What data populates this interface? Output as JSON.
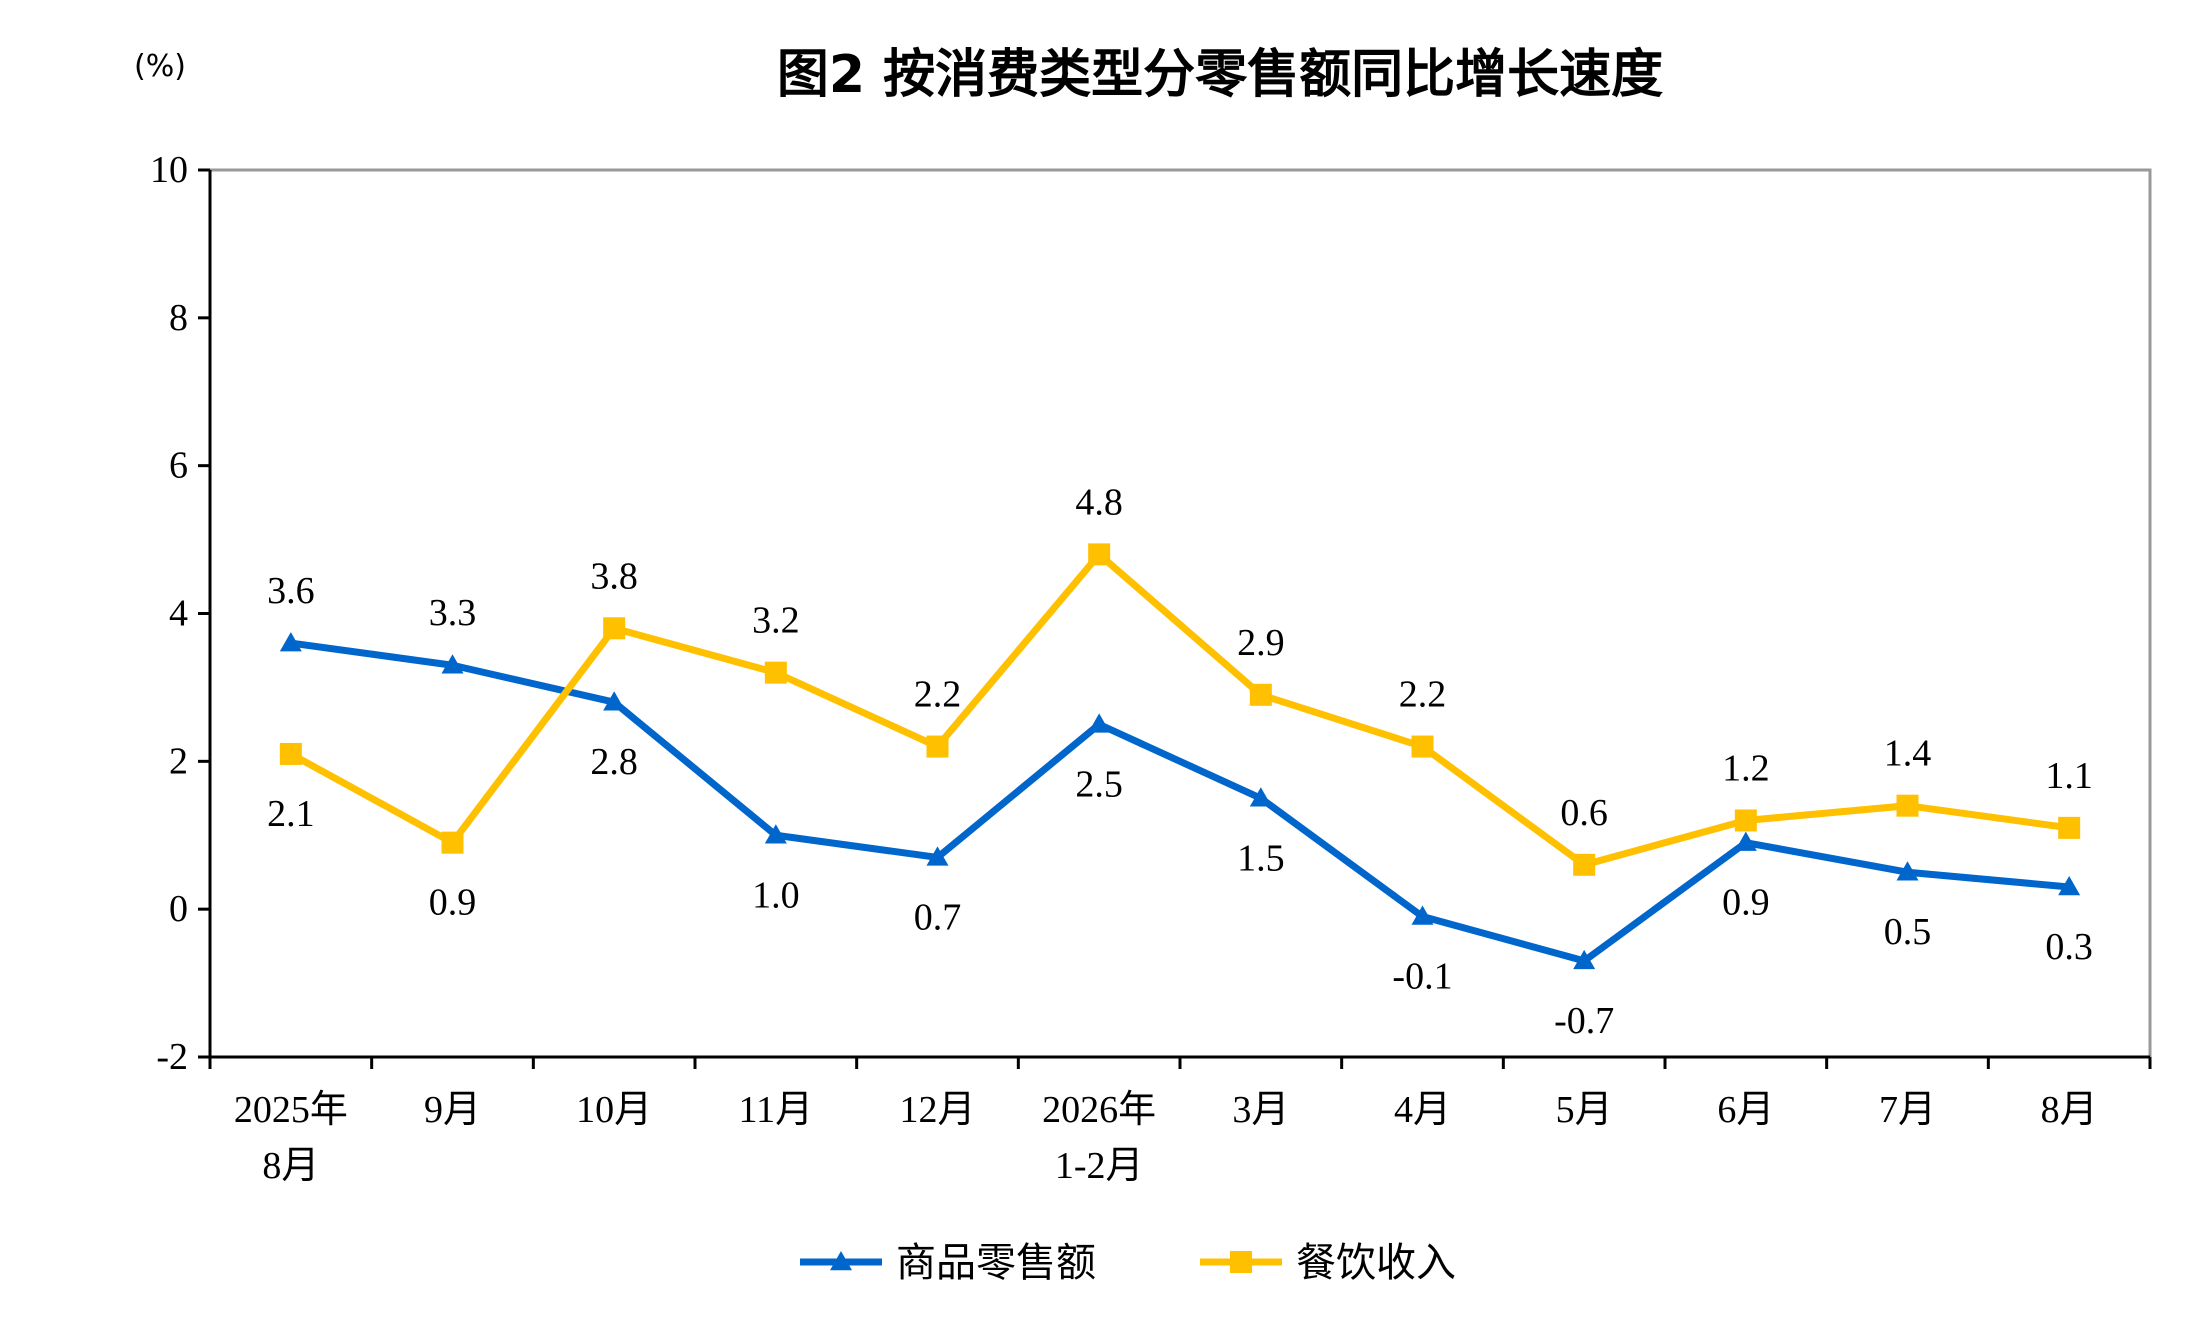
{
  "chart_data": {
    "type": "line",
    "title": "图2  按消费类型分零售额同比增长速度",
    "unit": "(%)",
    "categories": [
      [
        "2025年",
        "8月"
      ],
      [
        "9月"
      ],
      [
        "10月"
      ],
      [
        "11月"
      ],
      [
        "12月"
      ],
      [
        "2026年",
        "1-2月"
      ],
      [
        "3月"
      ],
      [
        "4月"
      ],
      [
        "5月"
      ],
      [
        "6月"
      ],
      [
        "7月"
      ],
      [
        "8月"
      ]
    ],
    "y_ticks": [
      "10",
      "8",
      "6",
      "4",
      "2",
      "0",
      "-2"
    ],
    "ylim": [
      -2,
      10
    ],
    "y_tick_values": [
      10,
      8,
      6,
      4,
      2,
      0,
      -2
    ],
    "legend_position": "bottom",
    "series": [
      {
        "name": "商品零售额",
        "color": "#0066cc",
        "marker": "triangle",
        "values": [
          3.6,
          3.3,
          2.8,
          1.0,
          0.7,
          2.5,
          1.5,
          -0.1,
          -0.7,
          0.9,
          0.5,
          0.3
        ],
        "labels": [
          "3.6",
          "3.3",
          "2.8",
          "1.0",
          "0.7",
          "2.5",
          "1.5",
          "-0.1",
          "-0.7",
          "0.9",
          "0.5",
          "0.3"
        ]
      },
      {
        "name": "餐饮收入",
        "color": "#ffc000",
        "marker": "square",
        "values": [
          2.1,
          0.9,
          3.8,
          3.2,
          2.2,
          4.8,
          2.9,
          2.2,
          0.6,
          1.2,
          1.4,
          1.1
        ],
        "labels": [
          "2.1",
          "0.9",
          "3.8",
          "3.2",
          "2.2",
          "4.8",
          "2.9",
          "2.2",
          "0.6",
          "1.2",
          "1.4",
          "1.1"
        ]
      }
    ]
  }
}
